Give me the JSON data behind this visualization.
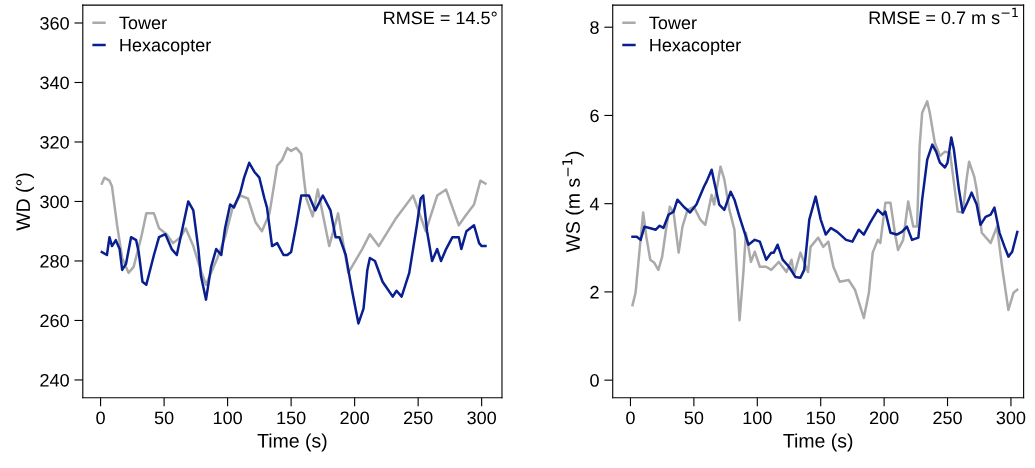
{
  "chart_data": [
    {
      "type": "line",
      "xlabel": "Time (s)",
      "ylabel": "WD (°)",
      "annotations": [
        "RMSE = 14.5°"
      ],
      "xlim": [
        -14,
        316
      ],
      "xticks": [
        0,
        50,
        100,
        150,
        200,
        250,
        300
      ],
      "ylim": [
        234,
        366
      ],
      "yticks": [
        240,
        260,
        280,
        300,
        320,
        340,
        360
      ],
      "legend": "top left",
      "series": [
        {
          "name": "Tower",
          "color": "#aaaaaa",
          "x": [
            1,
            3,
            7,
            9,
            13,
            17,
            22,
            26,
            32,
            36,
            42,
            46,
            52,
            57,
            63,
            67,
            73,
            78,
            83,
            87,
            92,
            98,
            104,
            110,
            116,
            122,
            127,
            133,
            139,
            143,
            147,
            150,
            154,
            158,
            160,
            162,
            167,
            171,
            180,
            187,
            195,
            206,
            212,
            219,
            232,
            246,
            256,
            265,
            272,
            282,
            287,
            294,
            299,
            303
          ],
          "values": [
            306,
            308,
            307,
            305,
            292,
            281,
            276,
            278,
            288,
            296,
            296,
            291,
            289,
            286,
            288,
            291,
            285,
            278,
            272,
            276,
            281,
            288,
            298,
            302,
            301,
            293,
            290,
            296,
            312,
            314,
            318,
            317,
            318,
            316,
            308,
            301,
            295,
            304,
            285,
            296,
            276,
            284,
            289,
            285,
            294,
            302,
            290,
            302,
            304,
            292,
            295,
            299,
            307,
            306
          ]
        },
        {
          "name": "Hexacopter",
          "color": "#0a1f8f",
          "x": [
            1,
            5,
            7,
            9,
            12,
            15,
            17,
            20,
            24,
            28,
            30,
            33,
            36,
            42,
            46,
            51,
            56,
            60,
            65,
            69,
            73,
            77,
            79,
            83,
            87,
            91,
            95,
            98,
            102,
            105,
            110,
            113,
            117,
            121,
            125,
            129,
            131,
            135,
            139,
            144,
            147,
            150,
            154,
            158,
            164,
            169,
            175,
            181,
            185,
            188,
            193,
            198,
            203,
            207,
            210,
            212,
            216,
            222,
            230,
            233,
            237,
            243,
            249,
            252,
            254,
            257,
            261,
            265,
            268,
            272,
            277,
            282,
            284,
            288,
            294,
            298,
            300,
            303
          ],
          "values": [
            283,
            282,
            288,
            285,
            287,
            284,
            277,
            279,
            288,
            287,
            283,
            273,
            272,
            282,
            288,
            289,
            284,
            282,
            292,
            300,
            297,
            284,
            275,
            267,
            278,
            284,
            282,
            291,
            299,
            298,
            303,
            308,
            313,
            310,
            308,
            301,
            298,
            285,
            286,
            282,
            282,
            283,
            292,
            302,
            302,
            297,
            302,
            297,
            288,
            288,
            282,
            270,
            259,
            264,
            277,
            281,
            280,
            273,
            268,
            270,
            268,
            276,
            292,
            301,
            302,
            290,
            280,
            284,
            280,
            284,
            288,
            288,
            284,
            290,
            292,
            286,
            285,
            285
          ]
        }
      ]
    },
    {
      "type": "line",
      "xlabel": "Time (s)",
      "ylabel": "WS (m s$^{−1}$)",
      "annotations": [
        "RMSE = 0.7 m s$^{−1}$"
      ],
      "xlim": [
        -14,
        310
      ],
      "xticks": [
        0,
        50,
        100,
        150,
        200,
        250,
        300
      ],
      "ylim": [
        -0.4,
        8.5
      ],
      "yticks": [
        0,
        2,
        4,
        6,
        8
      ],
      "legend": "top left",
      "series": [
        {
          "name": "Tower",
          "color": "#aaaaaa",
          "x": [
            1.6,
            4,
            7,
            10,
            12.5,
            15.6,
            18.8,
            22,
            25,
            28,
            31,
            34,
            38,
            41,
            45,
            50,
            55,
            59,
            64,
            66,
            71,
            74,
            78,
            82,
            86,
            89,
            91,
            95,
            98,
            102,
            107,
            111,
            117,
            123,
            127,
            129,
            134,
            140,
            142,
            148,
            152,
            156,
            160,
            165,
            172,
            177,
            184,
            188,
            191,
            195,
            197,
            201,
            205,
            209,
            211,
            215,
            219,
            223,
            226,
            228,
            230,
            234,
            236,
            240,
            244,
            248,
            252,
            258,
            262,
            265,
            267,
            271,
            273,
            277,
            284,
            289,
            293,
            298,
            302,
            305
          ],
          "values": [
            1.7,
            1.98,
            2.89,
            3.8,
            3.25,
            2.73,
            2.66,
            2.5,
            2.8,
            3.41,
            3.93,
            3.8,
            2.89,
            3.48,
            3.86,
            3.93,
            3.64,
            3.52,
            4.2,
            3.98,
            4.84,
            4.55,
            3.86,
            3.41,
            1.36,
            2.43,
            3.34,
            2.68,
            2.91,
            2.57,
            2.57,
            2.5,
            2.68,
            2.45,
            2.73,
            2.39,
            2.89,
            2.45,
            3.02,
            3.23,
            3.02,
            3.14,
            2.57,
            2.23,
            2.27,
            2.05,
            1.41,
            1.98,
            2.89,
            3.18,
            3.11,
            4.02,
            4.02,
            3.25,
            2.95,
            3.18,
            4.05,
            3.48,
            3.48,
            5.3,
            6.06,
            6.32,
            6.06,
            5.38,
            5.08,
            5.18,
            5.15,
            3.82,
            3.8,
            4.55,
            4.95,
            4.62,
            4.32,
            3.34,
            3.11,
            3.48,
            2.57,
            1.59,
            1.98,
            2.05
          ]
        },
        {
          "name": "Hexacopter",
          "color": "#0a1f8f",
          "x": [
            1.6,
            5,
            8,
            11,
            15,
            20,
            23,
            26,
            30,
            34,
            37,
            42,
            47,
            52,
            58,
            60,
            64,
            66,
            70,
            74,
            79,
            82,
            86,
            93,
            98,
            102,
            107,
            111,
            113,
            116,
            120,
            125,
            130,
            134,
            137,
            141,
            146,
            150,
            154,
            158,
            163,
            170,
            175,
            180,
            184,
            189,
            195,
            199,
            201,
            205,
            210,
            214,
            218,
            222,
            227,
            230,
            234,
            238,
            241,
            244,
            248,
            250,
            253,
            255,
            259,
            262,
            266,
            269,
            273,
            276,
            280,
            284,
            287,
            291,
            295,
            298,
            301,
            305
          ],
          "values": [
            3.25,
            3.25,
            3.18,
            3.48,
            3.45,
            3.41,
            3.5,
            3.45,
            3.75,
            3.82,
            4.09,
            3.93,
            3.8,
            3.98,
            4.39,
            4.5,
            4.77,
            4.5,
            3.98,
            3.86,
            4.27,
            4.09,
            3.7,
            3.07,
            3.18,
            3.14,
            2.73,
            2.89,
            2.89,
            3.07,
            2.73,
            2.57,
            2.34,
            2.32,
            2.5,
            3.64,
            4.16,
            3.64,
            3.3,
            3.45,
            3.36,
            3.18,
            3.14,
            3.41,
            3.3,
            3.57,
            3.86,
            3.75,
            3.82,
            3.34,
            3.3,
            3.36,
            3.48,
            3.18,
            3.23,
            4.09,
            5.0,
            5.34,
            5.18,
            4.93,
            4.82,
            4.93,
            5.5,
            5.23,
            4.32,
            3.8,
            4.05,
            4.25,
            3.98,
            3.52,
            3.7,
            3.75,
            3.91,
            3.34,
            3.02,
            2.8,
            2.91,
            3.36
          ]
        }
      ]
    }
  ]
}
